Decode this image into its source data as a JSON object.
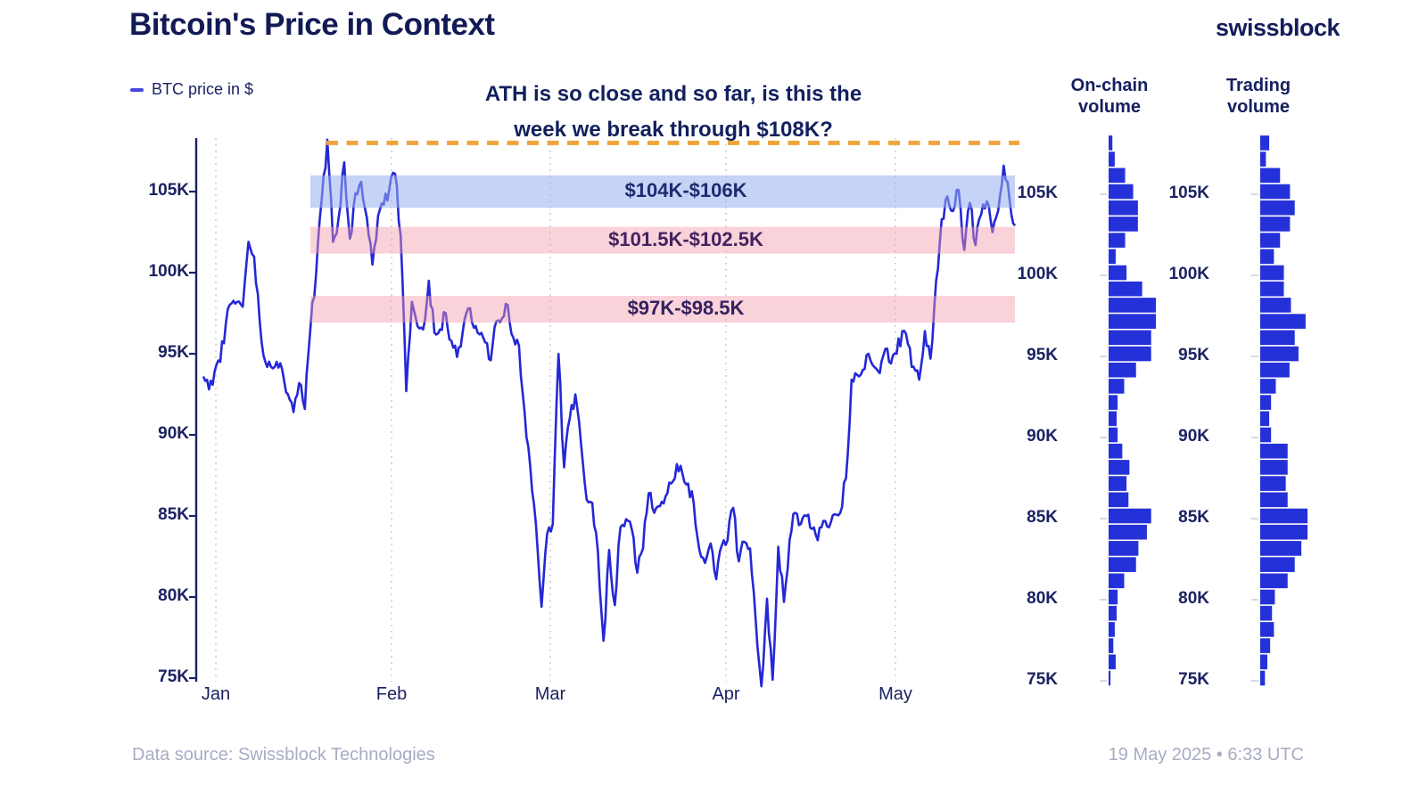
{
  "title": "Bitcoin's Price in Context",
  "logo": "swissblock",
  "legend": {
    "label": "BTC price in $"
  },
  "annotation": {
    "line1": "ATH is so close and so far, is this the",
    "line2": "week we break through $108K?"
  },
  "footer": {
    "source": "Data source: Swissblock Technologies",
    "timestamp": "19 May 2025 • 6:33 UTC"
  },
  "colors": {
    "navy_text": "#1b2263",
    "price_line": "#2428d6",
    "volume_bar": "#2531d8",
    "band_blue": "#96aff0",
    "band_pink": "#f39baa",
    "ath_dash_orange": "#f0a43c",
    "gridline": "#c9c9ce",
    "footer_grey": "#a8abc4"
  },
  "chart_data": {
    "type": "line",
    "title": "Bitcoin's Price in Context",
    "series_name": "BTC price in $",
    "unit": "thousand USD",
    "x_axis": {
      "tick_labels": [
        "Jan",
        "Feb",
        "Mar",
        "Apr",
        "May"
      ]
    },
    "y_axis": {
      "tick_labels": [
        "105K",
        "100K",
        "95K",
        "90K",
        "85K",
        "80K",
        "75K"
      ],
      "range_k": [
        74,
        108.5
      ]
    },
    "grid": "vertical-dotted-monthly",
    "legend_position": "top-left",
    "prices_k_daily": [
      93.6,
      92.8,
      93.9,
      94.5,
      96.9,
      98.1,
      98.2,
      97.9,
      101.9,
      101.0,
      97.0,
      94.5,
      94.2,
      94.5,
      94.0,
      92.5,
      91.4,
      93.2,
      91.6,
      96.6,
      99.9,
      104.5,
      108.2,
      101.9,
      103.4,
      106.8,
      102.1,
      104.9,
      105.6,
      103.4,
      100.5,
      103.5,
      104.2,
      105.2,
      106.1,
      102.3,
      92.7,
      98.2,
      96.7,
      96.5,
      99.5,
      96.3,
      96.5,
      97.5,
      95.8,
      94.8,
      96.3,
      97.8,
      96.6,
      96.2,
      95.7,
      94.6,
      97.0,
      97.2,
      98.0,
      96.0,
      95.5,
      91.4,
      88.0,
      84.5,
      79.4,
      83.9,
      84.5,
      95.0,
      88.0,
      91.0,
      92.5,
      89.5,
      86.0,
      85.8,
      82.8,
      77.3,
      82.9,
      79.5,
      84.3,
      84.8,
      84.2,
      81.5,
      83.0,
      86.4,
      85.2,
      85.6,
      86.2,
      87.0,
      88.2,
      87.6,
      87.0,
      85.8,
      82.9,
      82.1,
      83.3,
      81.1,
      83.2,
      83.5,
      85.5,
      82.2,
      83.4,
      83.0,
      78.5,
      74.5,
      79.9,
      74.9,
      83.1,
      79.7,
      83.5,
      85.2,
      84.5,
      85.0,
      84.2,
      83.5,
      84.7,
      84.3,
      85.1,
      85.2,
      87.3,
      93.4,
      93.7,
      94.0,
      95.0,
      94.2,
      93.8,
      95.3,
      94.4,
      95.0,
      96.4,
      95.6,
      94.2,
      93.4,
      96.4,
      94.7,
      99.5,
      103.3,
      104.7,
      103.8,
      105.1,
      101.4,
      104.3,
      101.7,
      103.6,
      104.4,
      102.5,
      103.8,
      106.6,
      104.6,
      102.9
    ],
    "ath_line": {
      "value_k": 108,
      "style": "dashed",
      "color": "#f0a43c"
    },
    "bands": [
      {
        "label": "$104K-$106K",
        "from_k": 104,
        "to_k": 106,
        "fill": "#96aff0",
        "opacity": 0.55,
        "label_color": "#1f2a70"
      },
      {
        "label": "$101.5K-$102.5K",
        "from_k": 101.5,
        "to_k": 102.5,
        "fill": "#f39baa",
        "opacity": 0.45,
        "label_color": "#43235f"
      },
      {
        "label": "$97K-$98.5K",
        "from_k": 97,
        "to_k": 98.5,
        "fill": "#f39baa",
        "opacity": 0.45,
        "label_color": "#33215f"
      }
    ],
    "histograms": [
      {
        "title": "On-chain volume",
        "price_bin_top_k": 108,
        "price_bin_step_k": -1,
        "values_rel": [
          0.08,
          0.13,
          0.35,
          0.52,
          0.62,
          0.62,
          0.35,
          0.15,
          0.38,
          0.71,
          1.0,
          1.0,
          0.9,
          0.9,
          0.58,
          0.33,
          0.19,
          0.17,
          0.19,
          0.29,
          0.44,
          0.38,
          0.42,
          0.9,
          0.81,
          0.63,
          0.58,
          0.33,
          0.19,
          0.17,
          0.13,
          0.1,
          0.15,
          0.04
        ],
        "tick_labels": [
          "105K",
          "100K",
          "95K",
          "90K",
          "85K",
          "80K",
          "75K"
        ]
      },
      {
        "title": "Trading volume",
        "price_bin_top_k": 108,
        "price_bin_step_k": -1,
        "values_rel": [
          0.19,
          0.12,
          0.42,
          0.63,
          0.73,
          0.63,
          0.42,
          0.29,
          0.5,
          0.5,
          0.65,
          0.96,
          0.73,
          0.81,
          0.62,
          0.33,
          0.23,
          0.19,
          0.23,
          0.58,
          0.58,
          0.54,
          0.58,
          1.0,
          1.0,
          0.87,
          0.73,
          0.58,
          0.31,
          0.25,
          0.29,
          0.21,
          0.15,
          0.1
        ],
        "tick_labels": [
          "105K",
          "100K",
          "95K",
          "90K",
          "85K",
          "80K",
          "75K"
        ]
      }
    ]
  }
}
